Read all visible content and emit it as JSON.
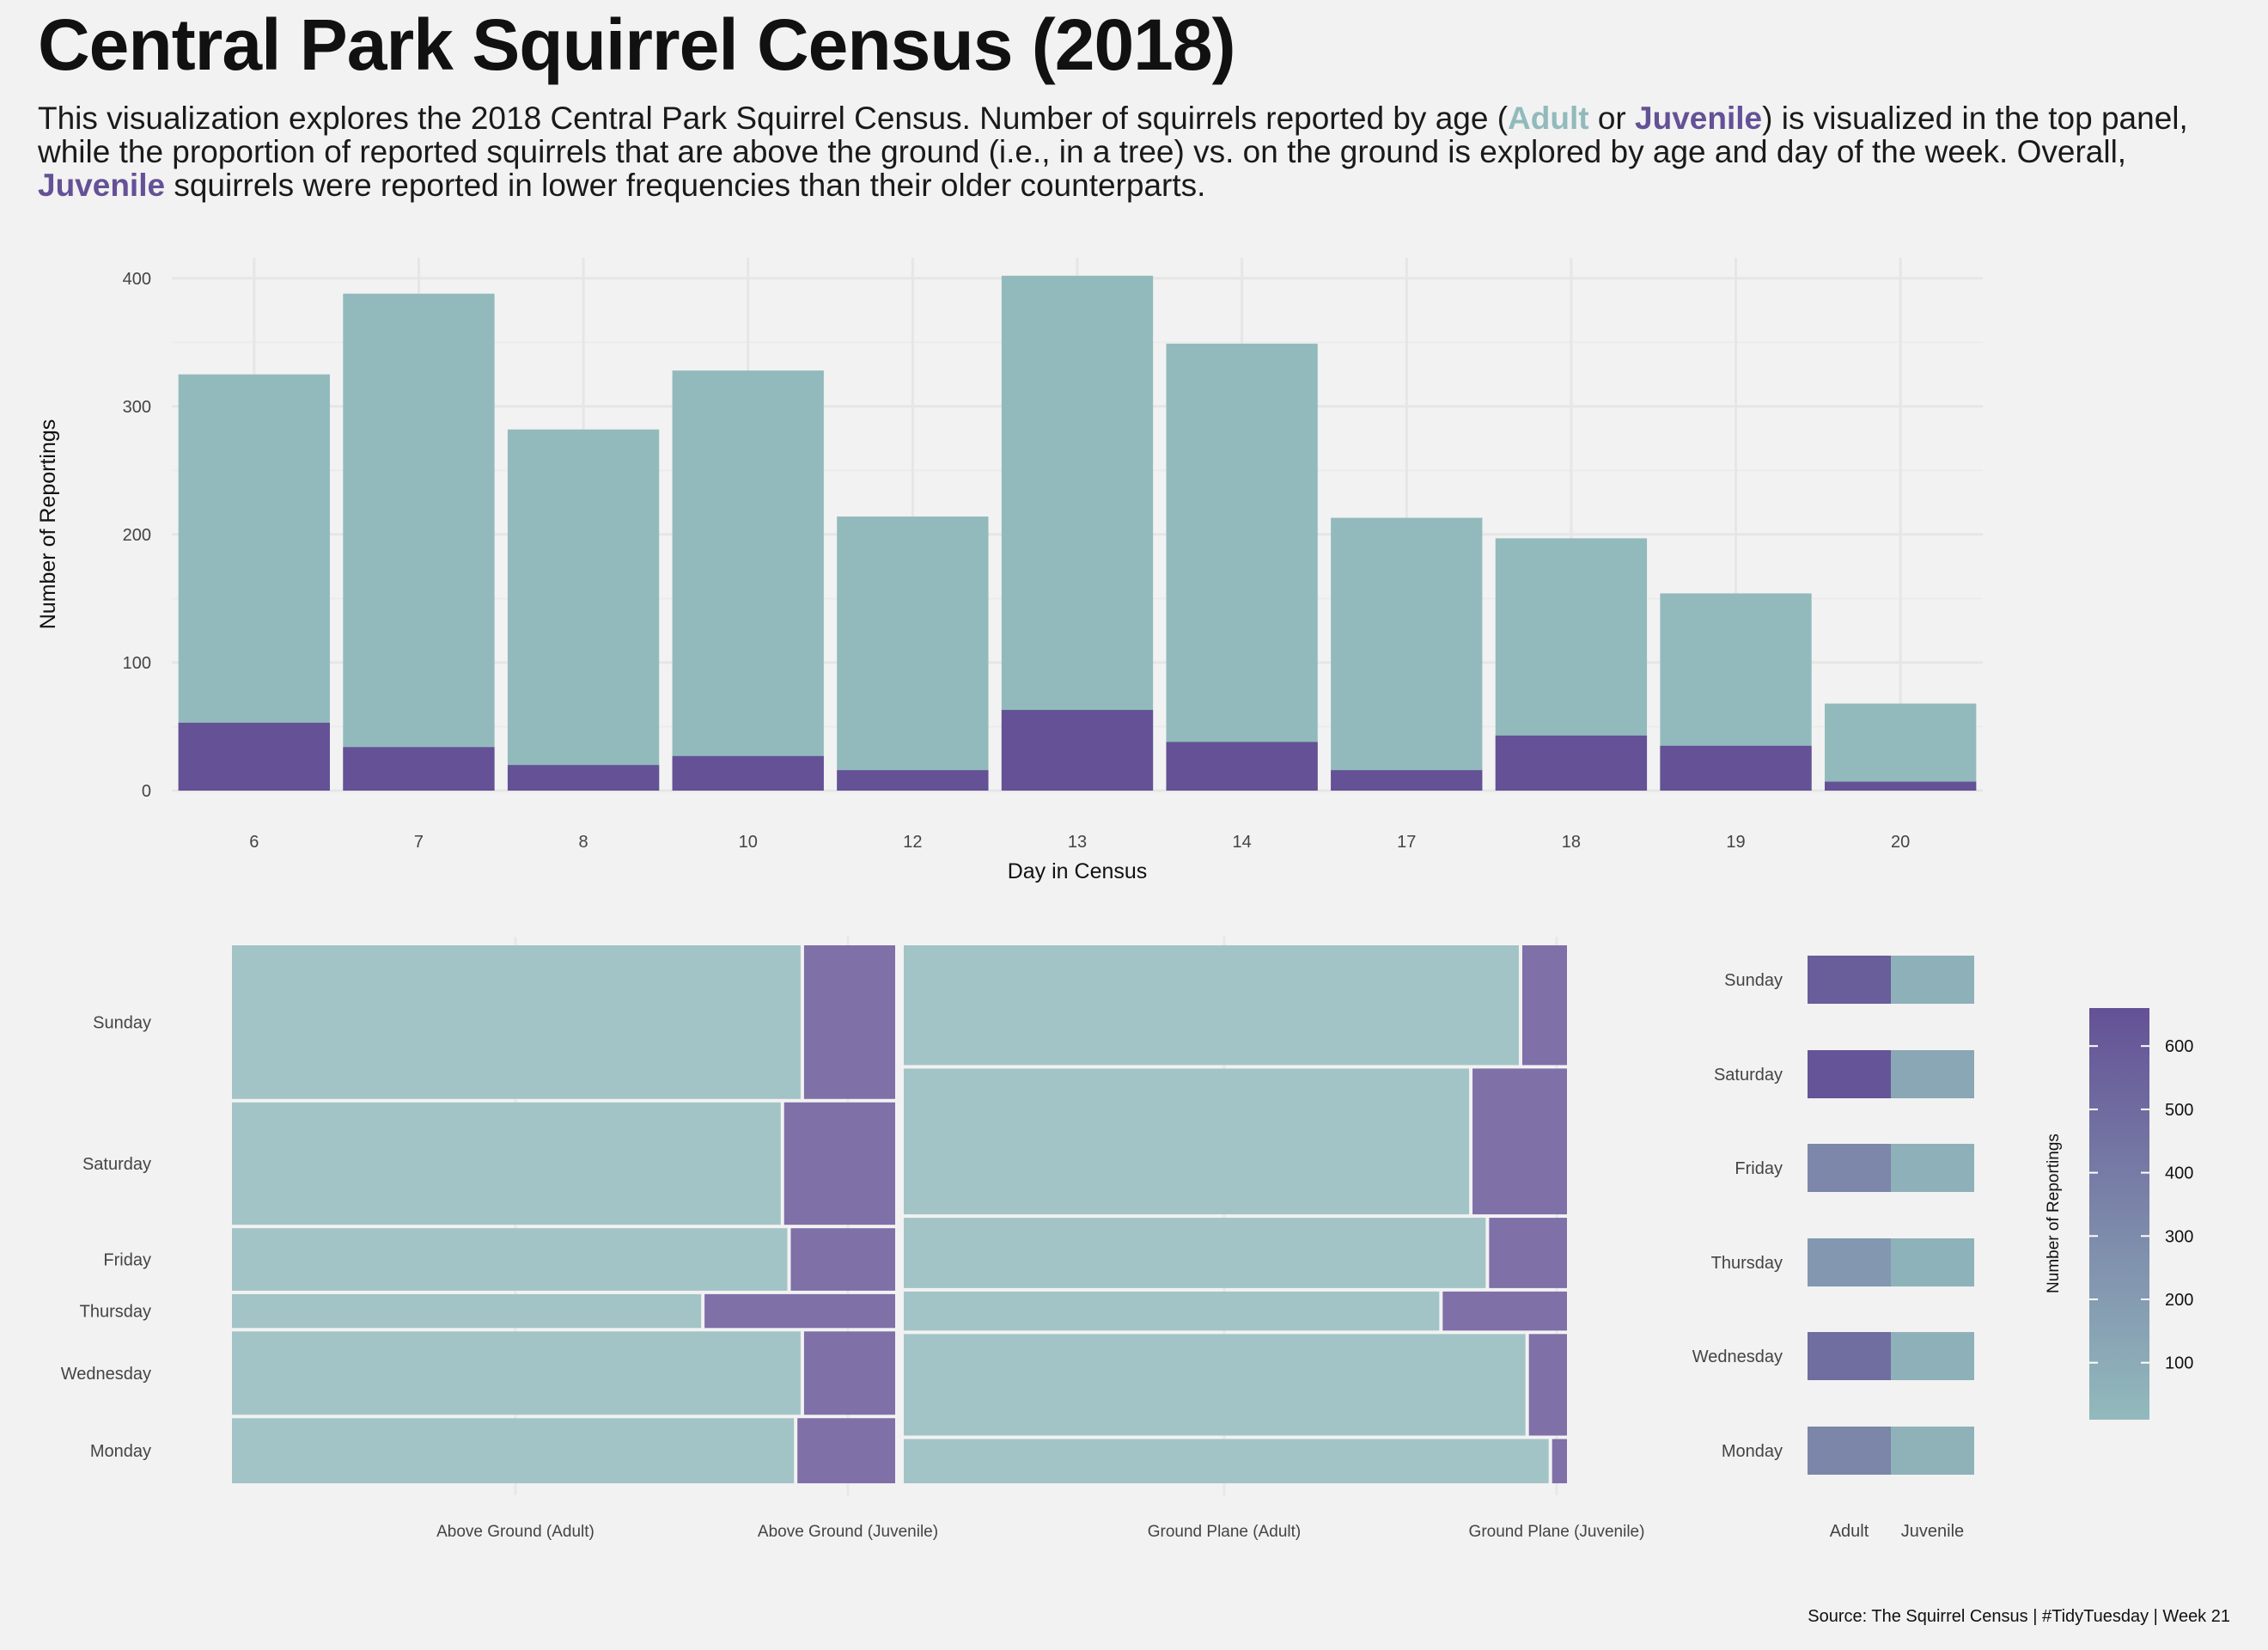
{
  "title": "Central Park Squirrel Census (2018)",
  "subtitle": {
    "part1": "This visualization explores the 2018 Central Park Squirrel Census. Number of squirrels reported by age (",
    "adult": "Adult",
    "part2": " or ",
    "juvenile": "Juvenile",
    "part3": ") is visualized in the top panel, while the proportion of reported squirrels that are above the ground (i.e., in a tree) vs. on the ground is explored by age and day of the week. Overall, ",
    "juvenile2": "Juvenile",
    "part4": " squirrels were reported in lower frequencies than their older counterparts."
  },
  "colors": {
    "adult": "#92babc",
    "juvenile": "#645196",
    "background": "#f2f2f2",
    "grid": "#e6e6e6"
  },
  "chart_data": [
    {
      "type": "bar",
      "categories": [
        "6",
        "7",
        "8",
        "10",
        "12",
        "13",
        "14",
        "17",
        "18",
        "19",
        "20"
      ],
      "series": [
        {
          "name": "Adult",
          "values": [
            325,
            388,
            282,
            328,
            214,
            402,
            349,
            213,
            197,
            154,
            68
          ]
        },
        {
          "name": "Juvenile",
          "values": [
            53,
            34,
            20,
            27,
            16,
            63,
            38,
            16,
            43,
            35,
            7
          ]
        }
      ],
      "xlabel": "Day in Census",
      "ylabel": "Number of Reportings",
      "ylim": [
        0,
        400
      ],
      "yticks": [
        0,
        100,
        200,
        300,
        400
      ]
    },
    {
      "type": "mosaic",
      "columns": [
        "Above Ground (Adult)",
        "Above Ground (Juvenile)",
        "Ground Plane (Adult)",
        "Ground Plane (Juvenile)"
      ],
      "rows": [
        "Sunday",
        "Saturday",
        "Friday",
        "Thursday",
        "Wednesday",
        "Monday"
      ],
      "above_ground": {
        "row_shares": [
          0.295,
          0.235,
          0.12,
          0.065,
          0.16,
          0.125
        ],
        "adult_share": [
          0.86,
          0.83,
          0.84,
          0.71,
          0.86,
          0.85
        ]
      },
      "ground_plane": {
        "row_shares": [
          0.23,
          0.28,
          0.135,
          0.075,
          0.195,
          0.085
        ],
        "adult_share": [
          0.93,
          0.855,
          0.88,
          0.81,
          0.94,
          0.975
        ]
      }
    },
    {
      "type": "heatmap",
      "rows": [
        "Sunday",
        "Saturday",
        "Friday",
        "Thursday",
        "Wednesday",
        "Monday"
      ],
      "columns": [
        "Adult",
        "Juvenile"
      ],
      "values": [
        [
          600,
          60
        ],
        [
          660,
          120
        ],
        [
          330,
          60
        ],
        [
          220,
          55
        ],
        [
          500,
          60
        ],
        [
          340,
          50
        ]
      ],
      "legend_title": "Number of Reportings",
      "legend_ticks": [
        100,
        200,
        300,
        400,
        500,
        600
      ]
    }
  ],
  "source": "Source: The Squirrel Census | #TidyTuesday | Week 21"
}
